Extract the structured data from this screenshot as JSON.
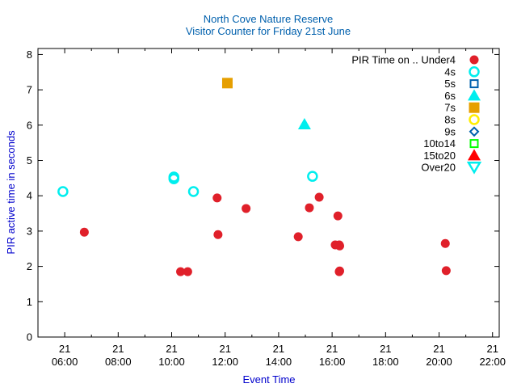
{
  "chart_data": {
    "type": "scatter",
    "title": "North Cove Nature Reserve",
    "subtitle": "Visitor Counter for Friday 21st June",
    "xlabel": "Event Time",
    "ylabel": "PIR active time in seconds",
    "xlim": [
      "05:00",
      "22:15"
    ],
    "ylim": [
      0,
      8.17
    ],
    "yticks": [
      0,
      1,
      2,
      3,
      4,
      5,
      6,
      7,
      8
    ],
    "xticks": [
      {
        "day": "21",
        "time": "06:00"
      },
      {
        "day": "21",
        "time": "08:00"
      },
      {
        "day": "21",
        "time": "10:00"
      },
      {
        "day": "21",
        "time": "12:00"
      },
      {
        "day": "21",
        "time": "14:00"
      },
      {
        "day": "21",
        "time": "16:00"
      },
      {
        "day": "21",
        "time": "18:00"
      },
      {
        "day": "21",
        "time": "20:00"
      },
      {
        "day": "21",
        "time": "22:00"
      }
    ],
    "grid": false,
    "legend_position": "top-right",
    "series": [
      {
        "name": "PIR Time on .. Under4",
        "marker": "filled-circle",
        "color": "#e0202a",
        "points": [
          [
            "06:44",
            2.97
          ],
          [
            "10:20",
            1.85
          ],
          [
            "10:36",
            1.85
          ],
          [
            "11:42",
            3.94
          ],
          [
            "11:44",
            2.9
          ],
          [
            "12:47",
            3.64
          ],
          [
            "14:44",
            2.84
          ],
          [
            "15:09",
            3.66
          ],
          [
            "15:31",
            3.96
          ],
          [
            "16:13",
            3.43
          ],
          [
            "16:07",
            2.61
          ],
          [
            "16:16",
            2.61
          ],
          [
            "16:17",
            2.58
          ],
          [
            "16:16",
            1.85
          ],
          [
            "16:17",
            1.87
          ],
          [
            "20:14",
            2.65
          ],
          [
            "20:16",
            1.88
          ]
        ]
      },
      {
        "name": "4s",
        "marker": "open-circle",
        "color": "#00eeee",
        "points": [
          [
            "05:56",
            4.12
          ],
          [
            "10:05",
            4.53
          ],
          [
            "10:05",
            4.48
          ],
          [
            "10:49",
            4.12
          ],
          [
            "15:16",
            4.55
          ]
        ]
      },
      {
        "name": "5s",
        "marker": "open-square",
        "color": "#0060ad",
        "points": []
      },
      {
        "name": "6s",
        "marker": "filled-triangle",
        "color": "#00eeee",
        "points": [
          [
            "14:58",
            6.02
          ]
        ]
      },
      {
        "name": "7s",
        "marker": "filled-square",
        "color": "#e69f00",
        "points": [
          [
            "12:05",
            7.19
          ]
        ]
      },
      {
        "name": "8s",
        "marker": "open-circle",
        "color": "#ffee00",
        "points": []
      },
      {
        "name": "9s",
        "marker": "open-diamond",
        "color": "#0060ad",
        "points": []
      },
      {
        "name": "10to14",
        "marker": "open-square",
        "color": "#00ff00",
        "points": []
      },
      {
        "name": "15to20",
        "marker": "filled-triangle",
        "color": "#ff0000",
        "points": []
      },
      {
        "name": "Over20",
        "marker": "open-triangle-down",
        "color": "#00eeee",
        "points": []
      }
    ],
    "text_color": "#0000cc"
  }
}
